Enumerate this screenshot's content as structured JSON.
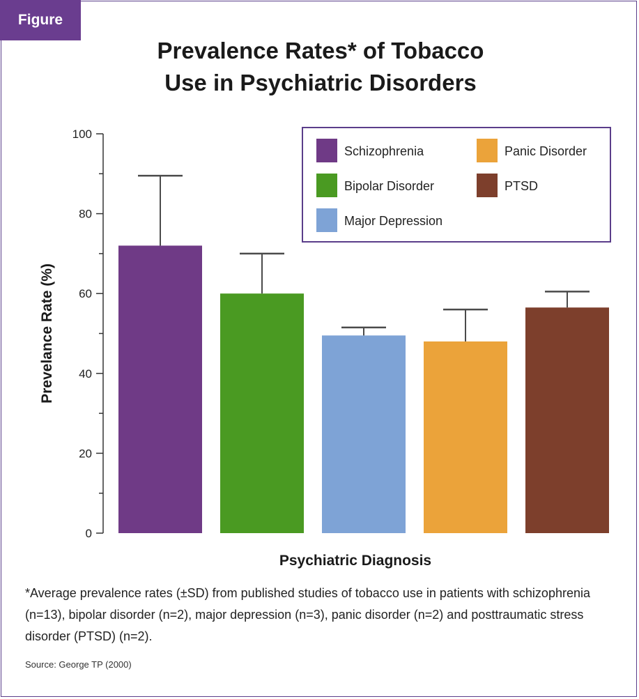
{
  "figure_label": "Figure",
  "title_line1": "Prevalence Rates* of Tobacco",
  "title_line2": "Use in Psychiatric Disorders",
  "footnote": "*Average prevalence rates (±SD) from published studies of tobacco use in patients with schizophrenia (n=13), bipolar disorder (n=2), major depression (n=3), panic disorder (n=2) and posttraumatic stress disorder (PTSD) (n=2).",
  "source": "Source: George TP (2000)",
  "chart_data": {
    "type": "bar",
    "xlabel": "Psychiatric Diagnosis",
    "ylabel": "Prevelance Rate (%)",
    "ylim": [
      0,
      100
    ],
    "yticks": [
      0,
      20,
      40,
      60,
      80,
      100
    ],
    "legend_position": "top-right",
    "categories": [
      "Schizophrenia",
      "Bipolar Disorder",
      "Major Depression",
      "Panic Disorder",
      "PTSD"
    ],
    "values": [
      72,
      60,
      49.5,
      48,
      56.5
    ],
    "error_upper": [
      89.5,
      70,
      51.5,
      56,
      60.5
    ],
    "colors": [
      "#6f3a86",
      "#4a9a22",
      "#7ea3d6",
      "#eba33a",
      "#7d3f2c"
    ],
    "legend_order": [
      "Schizophrenia",
      "Panic Disorder",
      "Bipolar Disorder",
      "PTSD",
      "Major Depression"
    ]
  }
}
